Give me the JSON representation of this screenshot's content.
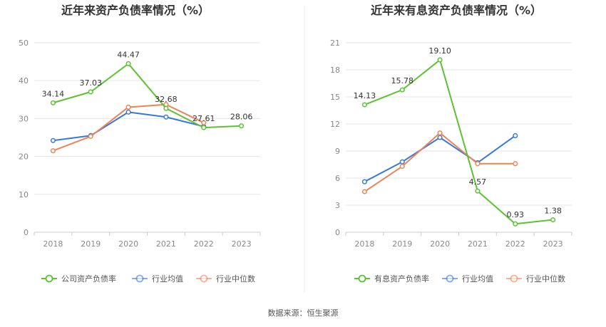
{
  "source": "数据来源：恒生聚源",
  "colors": {
    "main": "#5cc233",
    "avg": "#3a78d6",
    "median": "#ee8358"
  },
  "chart_data": [
    {
      "type": "line",
      "title": "近年来资产负债率情况（%）",
      "categories": [
        "2018",
        "2019",
        "2020",
        "2021",
        "2022",
        "2023"
      ],
      "ylim": [
        0,
        50
      ],
      "yticks": [
        "0",
        "10",
        "20",
        "30",
        "40",
        "50"
      ],
      "grid": true,
      "legend_position": "bottom",
      "series": [
        {
          "name": "公司资产负债率",
          "role": "main",
          "values": [
            34.14,
            37.03,
            44.47,
            32.68,
            27.61,
            28.06
          ],
          "labels": [
            "34.14",
            "37.03",
            "44.47",
            "32.68",
            "27.61",
            "28.06"
          ]
        },
        {
          "name": "行业均值",
          "role": "avg",
          "values": [
            24.2,
            25.5,
            31.7,
            30.4,
            27.9,
            null
          ]
        },
        {
          "name": "行业中位数",
          "role": "median",
          "values": [
            21.5,
            25.3,
            33.0,
            33.7,
            28.9,
            null
          ]
        }
      ]
    },
    {
      "type": "line",
      "title": "近年来有息资产负债率情况（%）",
      "categories": [
        "2018",
        "2019",
        "2020",
        "2021",
        "2022",
        "2023"
      ],
      "ylim": [
        0,
        21
      ],
      "yticks": [
        "0",
        "3",
        "6",
        "9",
        "12",
        "15",
        "18",
        "21"
      ],
      "grid": true,
      "legend_position": "bottom",
      "series": [
        {
          "name": "有息资产负债率",
          "role": "main",
          "values": [
            14.13,
            15.78,
            19.1,
            4.57,
            0.93,
            1.38
          ],
          "labels": [
            "14.13",
            "15.78",
            "19.10",
            "4.57",
            "0.93",
            "1.38"
          ]
        },
        {
          "name": "行业均值",
          "role": "avg",
          "values": [
            5.6,
            7.8,
            10.5,
            7.7,
            10.7,
            null
          ]
        },
        {
          "name": "行业中位数",
          "role": "median",
          "values": [
            4.5,
            7.3,
            11.0,
            7.6,
            7.6,
            null
          ]
        }
      ]
    }
  ]
}
